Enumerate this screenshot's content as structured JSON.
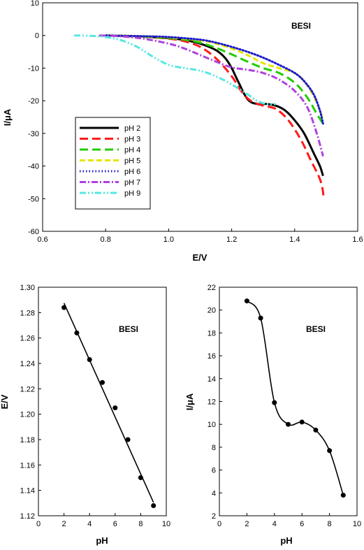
{
  "chart_data": [
    {
      "type": "line",
      "title": "",
      "xlabel": "E/V",
      "ylabel": "I/μA",
      "xlim": [
        0.6,
        1.6
      ],
      "ylim": [
        -60,
        10
      ],
      "xticks": [
        "0.6",
        "0.8",
        "1.0",
        "1.2",
        "1.4",
        "1.6"
      ],
      "yticks": [
        "10",
        "0",
        "-10",
        "-20",
        "-30",
        "-40",
        "-50",
        "-60"
      ],
      "annotation": "BESI",
      "grid": false,
      "legend": "middle-left",
      "series": [
        {
          "name": "pH 2",
          "color": "#000000",
          "dash": "solid",
          "x": [
            0.8,
            0.9,
            1.0,
            1.05,
            1.1,
            1.15,
            1.18,
            1.2,
            1.22,
            1.25,
            1.28,
            1.31,
            1.34,
            1.37,
            1.4,
            1.43,
            1.46,
            1.48,
            1.49
          ],
          "y": [
            0,
            -0.3,
            -0.8,
            -1.4,
            -2.5,
            -4.5,
            -7.0,
            -10.0,
            -14.0,
            -19.5,
            -21.0,
            -21.0,
            -21.5,
            -23.0,
            -26.0,
            -30.0,
            -36.0,
            -40.0,
            -43.0
          ]
        },
        {
          "name": "pH 3",
          "color": "#ff1a1a",
          "dash": "long",
          "x": [
            0.8,
            0.9,
            1.0,
            1.05,
            1.1,
            1.15,
            1.2,
            1.23,
            1.26,
            1.3,
            1.34,
            1.38,
            1.42,
            1.45,
            1.48,
            1.49,
            1.49
          ],
          "y": [
            0,
            -0.3,
            -1.0,
            -1.8,
            -3.5,
            -7.0,
            -12.5,
            -17.0,
            -20.0,
            -21.5,
            -22.5,
            -26.0,
            -32.0,
            -38.0,
            -44.0,
            -48.0,
            -50.0
          ]
        },
        {
          "name": "pH 4",
          "color": "#22cc00",
          "dash": "long",
          "x": [
            0.8,
            0.9,
            1.0,
            1.05,
            1.1,
            1.15,
            1.2,
            1.25,
            1.3,
            1.35,
            1.4,
            1.44,
            1.47,
            1.49
          ],
          "y": [
            0,
            -0.3,
            -0.8,
            -1.3,
            -2.2,
            -3.8,
            -5.8,
            -8.0,
            -10.0,
            -11.5,
            -14.5,
            -19.0,
            -24.0,
            -27.0
          ]
        },
        {
          "name": "pH 5",
          "color": "#e6e600",
          "dash": "medium",
          "x": [
            0.8,
            0.9,
            1.0,
            1.1,
            1.15,
            1.2,
            1.25,
            1.3,
            1.35,
            1.4,
            1.43,
            1.46,
            1.48,
            1.49
          ],
          "y": [
            0,
            -0.2,
            -0.6,
            -1.5,
            -2.5,
            -4.0,
            -6.0,
            -8.5,
            -10.0,
            -11.5,
            -14.0,
            -18.5,
            -23.0,
            -26.0
          ]
        },
        {
          "name": "pH 6",
          "color": "#1a1acc",
          "dash": "dotted",
          "x": [
            0.8,
            0.9,
            1.0,
            1.1,
            1.15,
            1.2,
            1.25,
            1.3,
            1.35,
            1.4,
            1.43,
            1.46,
            1.48,
            1.49
          ],
          "y": [
            0,
            -0.2,
            -0.5,
            -1.3,
            -2.2,
            -3.5,
            -5.0,
            -6.8,
            -9.0,
            -11.5,
            -14.0,
            -18.0,
            -23.0,
            -27.0
          ]
        },
        {
          "name": "pH 7",
          "color": "#b040e0",
          "dash": "dashdot",
          "x": [
            0.78,
            0.85,
            0.92,
            1.0,
            1.05,
            1.1,
            1.15,
            1.2,
            1.25,
            1.3,
            1.35,
            1.4,
            1.44,
            1.47,
            1.49
          ],
          "y": [
            0,
            -0.3,
            -1.0,
            -2.5,
            -4.0,
            -6.0,
            -8.0,
            -9.8,
            -10.5,
            -11.5,
            -13.5,
            -17.0,
            -22.0,
            -30.0,
            -37.0
          ]
        },
        {
          "name": "pH 9",
          "color": "#55e8e0",
          "dash": "dashdotdot",
          "x": [
            0.7,
            0.75,
            0.8,
            0.85,
            0.9,
            0.95,
            1.0,
            1.05,
            1.1,
            1.15,
            1.2,
            1.25,
            1.28,
            1.31,
            1.34
          ],
          "y": [
            0,
            -0.1,
            -0.5,
            -1.5,
            -3.5,
            -6.5,
            -9.0,
            -10.0,
            -10.8,
            -12.5,
            -15.0,
            -18.0,
            -20.0,
            -21.0,
            -21.0
          ]
        }
      ]
    },
    {
      "type": "scatter",
      "title": "",
      "xlabel": "pH",
      "ylabel": "E/V",
      "xlim": [
        0,
        10
      ],
      "ylim": [
        1.12,
        1.3
      ],
      "xticks": [
        "0",
        "2",
        "4",
        "6",
        "8",
        "10"
      ],
      "yticks": [
        "1.30",
        "1.28",
        "1.26",
        "1.24",
        "1.22",
        "1.20",
        "1.18",
        "1.16",
        "1.14",
        "1.12"
      ],
      "annotation": "BESI",
      "grid": false,
      "x": [
        2,
        3,
        4,
        5,
        6,
        7,
        8,
        9
      ],
      "y": [
        1.284,
        1.264,
        1.243,
        1.225,
        1.205,
        1.18,
        1.15,
        1.128
      ],
      "fit": {
        "x": [
          2,
          9
        ],
        "y": [
          1.2875,
          1.1305
        ]
      }
    },
    {
      "type": "scatter",
      "title": "",
      "xlabel": "pH",
      "ylabel": "I/μA",
      "xlim": [
        0,
        10
      ],
      "ylim": [
        2,
        22
      ],
      "xticks": [
        "0",
        "2",
        "4",
        "6",
        "8",
        "10"
      ],
      "yticks": [
        "22",
        "20",
        "18",
        "16",
        "14",
        "12",
        "10",
        "8",
        "6",
        "4",
        "2"
      ],
      "annotation": "BESI",
      "grid": false,
      "x": [
        2,
        3,
        4,
        5,
        6,
        7,
        8,
        9
      ],
      "y": [
        20.8,
        19.3,
        11.9,
        10.0,
        10.2,
        9.5,
        7.7,
        3.8
      ]
    }
  ]
}
